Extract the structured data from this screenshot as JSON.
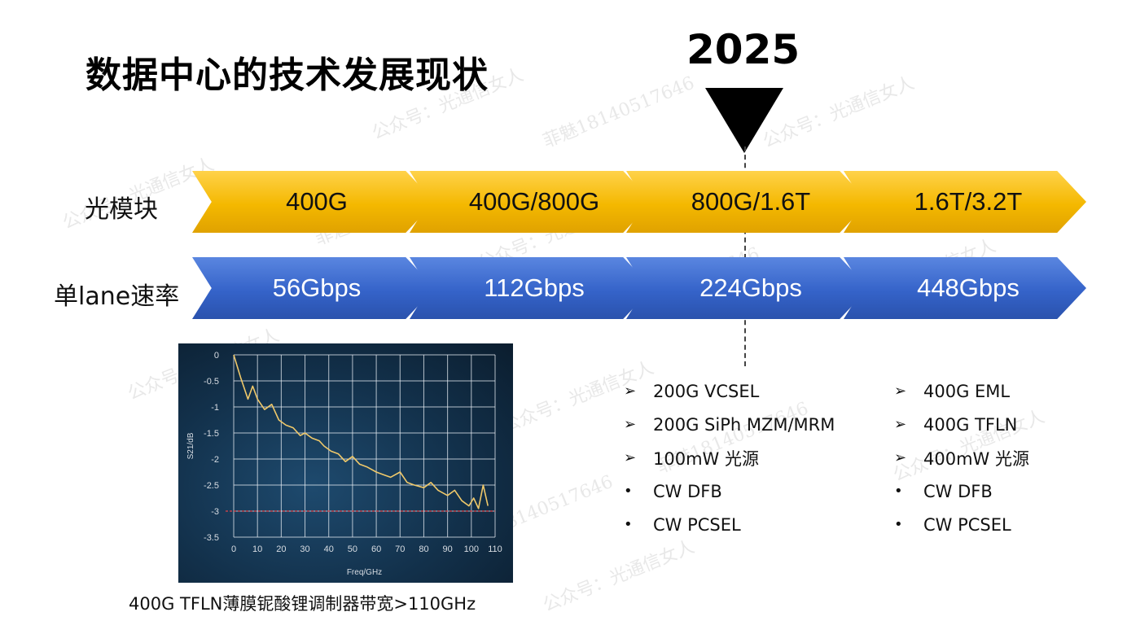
{
  "title": "数据中心的技术发展现状",
  "year": "2025",
  "rows": {
    "module_label": "光模块",
    "lane_label": "单lane速率",
    "modules": [
      "400G",
      "400G/800G",
      "800G/1.6T",
      "1.6T/3.2T"
    ],
    "lane_rates": [
      "56Gbps",
      "112Gbps",
      "224Gbps",
      "448Gbps"
    ]
  },
  "colors": {
    "yellow_chevron": "#f4b800",
    "blue_chevron": "#3563c9",
    "plot_background": "#12304a",
    "trace": "#f0c96a",
    "reference_line": "#e0454a"
  },
  "chart_data": {
    "type": "line",
    "xlabel": "Freq/GHz",
    "ylabel": "S21/dB",
    "xlim": [
      0,
      110
    ],
    "ylim": [
      -3.5,
      0
    ],
    "xticks": [
      "0",
      "10",
      "20",
      "30",
      "40",
      "50",
      "60",
      "70",
      "80",
      "90",
      "100",
      "110"
    ],
    "yticks": [
      "0",
      "-0.5",
      "-1",
      "-1.5",
      "-2",
      "-2.5",
      "-3",
      "-3.5"
    ],
    "grid": true,
    "series": [
      {
        "x": [
          0,
          3,
          6,
          8,
          10,
          13,
          16,
          19,
          22,
          25,
          28,
          30,
          33,
          36,
          38,
          41,
          44,
          47,
          50,
          53,
          56,
          60,
          63,
          66,
          70,
          73,
          76,
          80,
          83,
          86,
          90,
          93,
          96,
          99,
          101,
          103,
          105,
          107
        ],
        "values": [
          0,
          -0.45,
          -0.85,
          -0.6,
          -0.85,
          -1.05,
          -0.95,
          -1.25,
          -1.35,
          -1.4,
          -1.55,
          -1.5,
          -1.6,
          -1.65,
          -1.75,
          -1.85,
          -1.9,
          -2.05,
          -1.95,
          -2.1,
          -2.15,
          -2.25,
          -2.3,
          -2.35,
          -2.25,
          -2.45,
          -2.5,
          -2.55,
          -2.45,
          -2.6,
          -2.7,
          -2.6,
          -2.8,
          -2.9,
          -2.75,
          -2.95,
          -2.5,
          -2.9
        ]
      }
    ],
    "reference_line_y": -3
  },
  "caption": "400G TFLN薄膜铌酸锂调制器带宽>110GHz",
  "bullets_left": [
    {
      "mark": "➢",
      "text": "200G VCSEL"
    },
    {
      "mark": "➢",
      "text": "200G SiPh MZM/MRM"
    },
    {
      "mark": "➢",
      "text": "100mW 光源"
    },
    {
      "mark": "•",
      "text": "CW DFB"
    },
    {
      "mark": "•",
      "text": "CW PCSEL"
    }
  ],
  "bullets_right": [
    {
      "mark": "➢",
      "text": "400G EML"
    },
    {
      "mark": "➢",
      "text": "400G TFLN"
    },
    {
      "mark": "➢",
      "text": "400mW 光源"
    },
    {
      "mark": "•",
      "text": "CW DFB"
    },
    {
      "mark": "•",
      "text": "CW PCSEL"
    }
  ],
  "watermarks": [
    "公众号：光通信女人",
    "菲魅18140517646"
  ]
}
